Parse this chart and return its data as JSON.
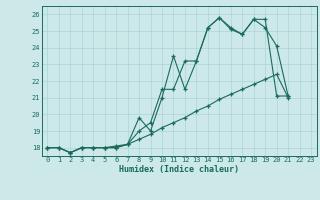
{
  "xlabel": "Humidex (Indice chaleur)",
  "bg_color": "#cce8e8",
  "grid_color": "#aad4d4",
  "line_color": "#1a6b5a",
  "spine_color": "#1a6b5a",
  "xlim": [
    -0.5,
    23.5
  ],
  "ylim": [
    17.5,
    26.5
  ],
  "yticks": [
    18,
    19,
    20,
    21,
    22,
    23,
    24,
    25,
    26
  ],
  "xticks": [
    0,
    1,
    2,
    3,
    4,
    5,
    6,
    7,
    8,
    9,
    10,
    11,
    12,
    13,
    14,
    15,
    16,
    17,
    18,
    19,
    20,
    21,
    22,
    23
  ],
  "line1_x": [
    0,
    1,
    2,
    3,
    4,
    5,
    6,
    7,
    8,
    9,
    10,
    11,
    12,
    13,
    14,
    15,
    16,
    17,
    18,
    19,
    20,
    21
  ],
  "line1_y": [
    18,
    18,
    17.7,
    18,
    18,
    18,
    18,
    18.2,
    19.8,
    19.0,
    21.0,
    23.5,
    21.5,
    23.2,
    25.2,
    25.8,
    25.2,
    24.8,
    25.7,
    25.2,
    24.1,
    21.1
  ],
  "line2_x": [
    0,
    1,
    2,
    3,
    4,
    5,
    6,
    7,
    8,
    9,
    10,
    11,
    12,
    13,
    14,
    15,
    16,
    17,
    18,
    19,
    20,
    21
  ],
  "line2_y": [
    18,
    18,
    17.7,
    18,
    18,
    18,
    18,
    18.2,
    19.0,
    19.5,
    21.5,
    21.5,
    23.2,
    23.2,
    25.2,
    25.8,
    25.1,
    24.8,
    25.7,
    25.7,
    21.1,
    21.1
  ],
  "line3_x": [
    0,
    1,
    2,
    3,
    4,
    5,
    6,
    7,
    8,
    9,
    10,
    11,
    12,
    13,
    14,
    15,
    16,
    17,
    18,
    19,
    20,
    21
  ],
  "line3_y": [
    18,
    18,
    17.7,
    18,
    18,
    18,
    18.1,
    18.2,
    18.5,
    18.8,
    19.2,
    19.5,
    19.8,
    20.2,
    20.5,
    20.9,
    21.2,
    21.5,
    21.8,
    22.1,
    22.4,
    21.0
  ]
}
